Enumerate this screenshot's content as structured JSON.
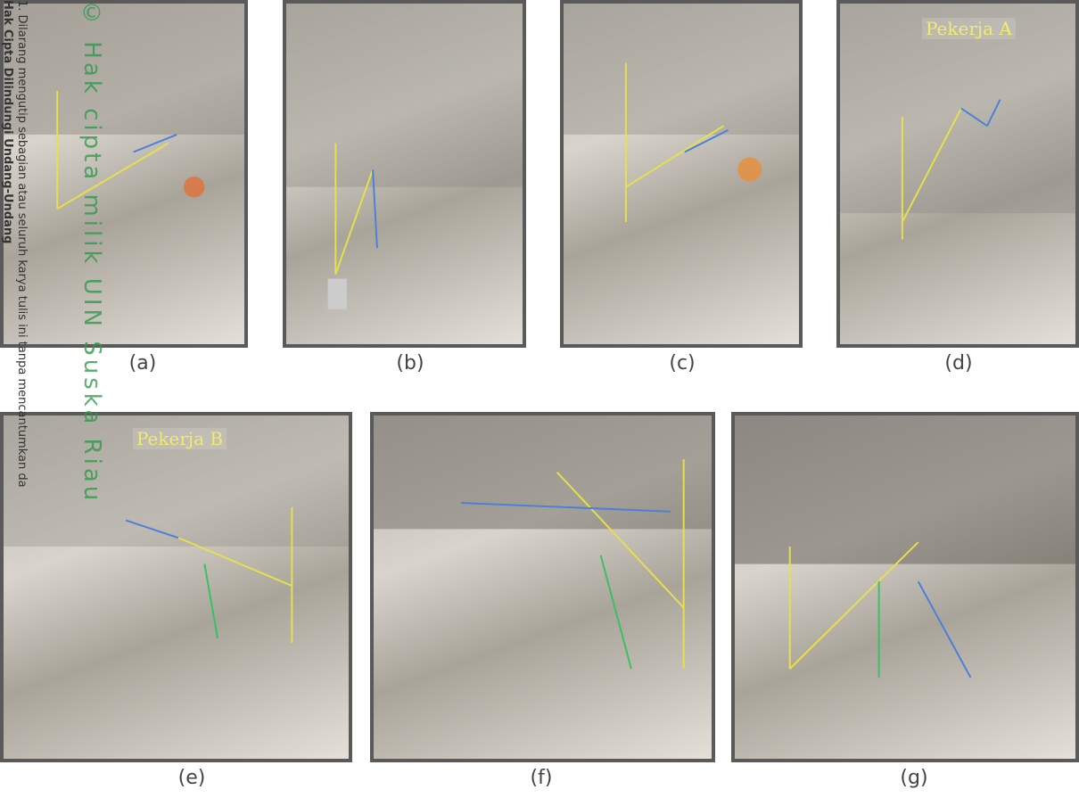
{
  "watermark": {
    "title": "© Hak cipta milik UIN Suska Riau",
    "notice": "Hak Cipta Dilindungi Undang-Undang",
    "rule": "1. Dilarang mengutip sebagian atau seluruh karya tulis ini tanpa mencantumkan da"
  },
  "panels": [
    {
      "caption": "(a)"
    },
    {
      "caption": "(b)"
    },
    {
      "caption": "(c)"
    },
    {
      "caption": "(d)",
      "tag": "Pekerja A"
    },
    {
      "caption": "(e)",
      "tag": "Pekerja B"
    },
    {
      "caption": "(f)"
    },
    {
      "caption": "(g)"
    }
  ]
}
